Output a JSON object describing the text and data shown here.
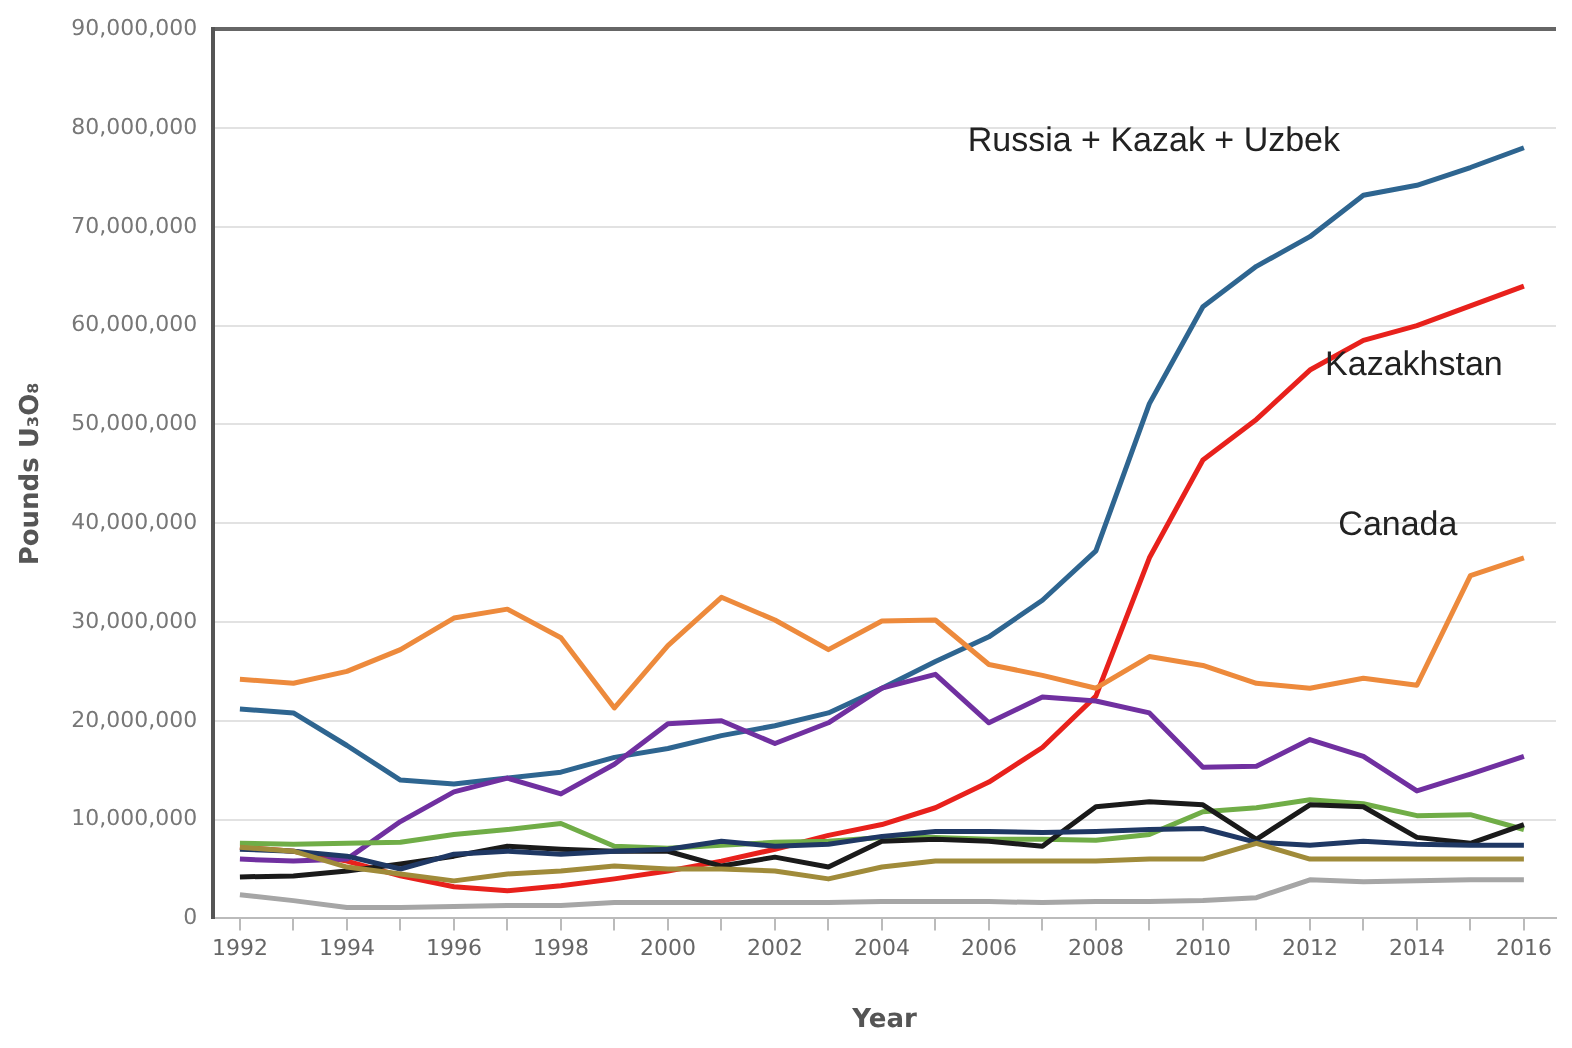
{
  "chart_data": {
    "type": "line",
    "xlabel": "Year",
    "ylabel": "Pounds U₃O₈",
    "x": [
      1992,
      1993,
      1994,
      1995,
      1996,
      1997,
      1998,
      1999,
      2000,
      2001,
      2002,
      2003,
      2004,
      2005,
      2006,
      2007,
      2008,
      2009,
      2010,
      2011,
      2012,
      2013,
      2014,
      2015,
      2016
    ],
    "series": [
      {
        "color": "#a6a6a6",
        "values": [
          2400000,
          1800000,
          1100000,
          1100000,
          1200000,
          1300000,
          1300000,
          1600000,
          1600000,
          1600000,
          1600000,
          1600000,
          1700000,
          1700000,
          1700000,
          1600000,
          1700000,
          1700000,
          1800000,
          2100000,
          3900000,
          3700000,
          3800000,
          3900000,
          3900000
        ]
      },
      {
        "color": "#a08b3a",
        "values": [
          7200000,
          6800000,
          5200000,
          4500000,
          3800000,
          4500000,
          4800000,
          5300000,
          5000000,
          5000000,
          4800000,
          4000000,
          5200000,
          5800000,
          5800000,
          5800000,
          5800000,
          6000000,
          6000000,
          7600000,
          6000000,
          6000000,
          6000000,
          6000000,
          6000000
        ]
      },
      {
        "color": "#1f3864",
        "values": [
          7000000,
          6800000,
          6300000,
          5000000,
          6500000,
          6800000,
          6500000,
          6800000,
          7000000,
          7800000,
          7300000,
          7500000,
          8300000,
          8800000,
          8800000,
          8700000,
          8800000,
          9000000,
          9100000,
          7700000,
          7400000,
          7800000,
          7500000,
          7400000,
          7400000
        ]
      },
      {
        "color": "#1a1a1a",
        "values": [
          4200000,
          4300000,
          4800000,
          5500000,
          6300000,
          7300000,
          7000000,
          6800000,
          6800000,
          5300000,
          6200000,
          5200000,
          7800000,
          8000000,
          7800000,
          7300000,
          11300000,
          11800000,
          11500000,
          8000000,
          11500000,
          11300000,
          8200000,
          7600000,
          9500000
        ]
      },
      {
        "color": "#70ad47",
        "values": [
          7600000,
          7500000,
          7600000,
          7700000,
          8500000,
          9000000,
          9600000,
          7300000,
          7100000,
          7400000,
          7700000,
          7800000,
          8200000,
          8200000,
          8000000,
          8000000,
          7900000,
          8500000,
          10800000,
          11200000,
          12000000,
          11600000,
          10400000,
          10500000,
          9000000
        ]
      },
      {
        "color": "#7030a0",
        "values": [
          6000000,
          5800000,
          6000000,
          9800000,
          12800000,
          14200000,
          12600000,
          15600000,
          19700000,
          20000000,
          17700000,
          19800000,
          23300000,
          24700000,
          19800000,
          22400000,
          22000000,
          20800000,
          15300000,
          15400000,
          18100000,
          16400000,
          12900000,
          14600000,
          16400000
        ]
      },
      {
        "name": "Canada",
        "color": "#ed8a3c",
        "values": [
          24200000,
          23800000,
          25000000,
          27200000,
          30400000,
          31300000,
          28400000,
          21300000,
          27600000,
          32500000,
          30200000,
          27200000,
          30100000,
          30200000,
          25700000,
          24600000,
          23300000,
          26500000,
          25600000,
          23800000,
          23300000,
          24300000,
          23600000,
          34700000,
          36500000
        ]
      },
      {
        "name": "Kazakhstan",
        "color": "#e8211c",
        "values": [
          7200000,
          6800000,
          5800000,
          4300000,
          3200000,
          2800000,
          3300000,
          4000000,
          4800000,
          5800000,
          7000000,
          8400000,
          9500000,
          11200000,
          13800000,
          17300000,
          22500000,
          36500000,
          46400000,
          50500000,
          55500000,
          58500000,
          60000000,
          62000000,
          64000000
        ]
      },
      {
        "name": "Russia + Kazak + Uzbek",
        "color": "#2e6590",
        "values": [
          21200000,
          20800000,
          17500000,
          14000000,
          13600000,
          14200000,
          14800000,
          16300000,
          17200000,
          18500000,
          19500000,
          20800000,
          23300000,
          26000000,
          28500000,
          32200000,
          37200000,
          52100000,
          61900000,
          66000000,
          69000000,
          73200000,
          74200000,
          76000000,
          78000000
        ]
      }
    ],
    "xlim": [
      1991.5,
      2016.6
    ],
    "xticks": [
      1992,
      {
        "value": 1993,
        "label": null
      },
      1994,
      {
        "value": 1995,
        "label": null
      },
      1996,
      {
        "value": 1997,
        "label": null
      },
      1998,
      {
        "value": 1999,
        "label": null
      },
      2000,
      {
        "value": 2001,
        "label": null
      },
      2002,
      {
        "value": 2003,
        "label": null
      },
      2004,
      {
        "value": 2005,
        "label": null
      },
      2006,
      {
        "value": 2007,
        "label": null
      },
      2008,
      {
        "value": 2009,
        "label": null
      },
      2010,
      {
        "value": 2011,
        "label": null
      },
      2012,
      {
        "value": 2013,
        "label": null
      },
      2014,
      {
        "value": 2015,
        "label": null
      },
      2016
    ],
    "ylim": [
      0,
      90000000
    ],
    "yticks": [
      0,
      {
        "value": 10000000,
        "label": "10,000,000"
      },
      {
        "value": 20000000,
        "label": "20,000,000"
      },
      {
        "value": 30000000,
        "label": "30,000,000"
      },
      {
        "value": 40000000,
        "label": "40,000,000"
      },
      {
        "value": 50000000,
        "label": "50,000,000"
      },
      {
        "value": 60000000,
        "label": "60,000,000"
      },
      {
        "value": 70000000,
        "label": "70,000,000"
      },
      {
        "value": 80000000,
        "label": "80,000,000"
      },
      {
        "value": 90000000,
        "label": "90,000,000"
      }
    ],
    "grid": "y",
    "legend": false,
    "marker": "none",
    "line_style": "solid"
  }
}
